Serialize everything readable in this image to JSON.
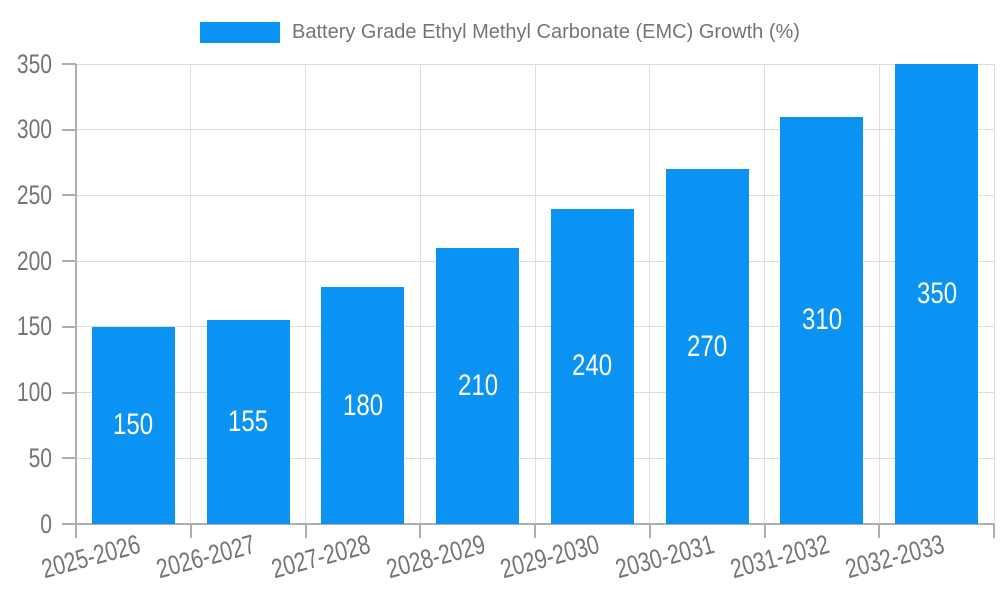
{
  "legend": {
    "label": "Battery Grade Ethyl Methyl Carbonate (EMC) Growth (%)"
  },
  "chart_data": {
    "type": "bar",
    "title": "",
    "xlabel": "",
    "ylabel": "",
    "categories": [
      "2025-2026",
      "2026-2027",
      "2027-2028",
      "2028-2029",
      "2029-2030",
      "2030-2031",
      "2031-2032",
      "2032-2033"
    ],
    "series": [
      {
        "name": "Battery Grade Ethyl Methyl Carbonate (EMC) Growth (%)",
        "values": [
          150,
          155,
          180,
          210,
          240,
          270,
          310,
          350
        ]
      }
    ],
    "bar_value_labels": [
      "150",
      "155",
      "180",
      "210",
      "240",
      "270",
      "310",
      "350"
    ],
    "yticks": [
      0,
      50,
      100,
      150,
      200,
      250,
      300,
      350
    ],
    "ylim": [
      0,
      350
    ],
    "grid": true,
    "legend_position": "top-center",
    "colors": {
      "bar": "#0a93f2",
      "bar_label": "#ffffff",
      "grid": "#dedede",
      "axis": "#aeaeae",
      "text": "#757575",
      "background": "#ffffff"
    }
  }
}
